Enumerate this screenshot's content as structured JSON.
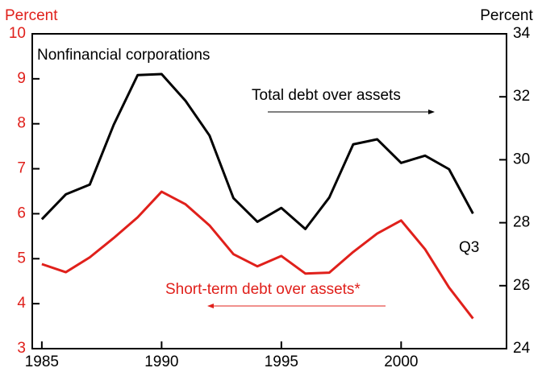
{
  "chart_data": {
    "type": "line",
    "y_label": "Percent",
    "y2_label": "Percent",
    "annotations": [
      "Nonfinancial corporations",
      "Total debt over assets",
      "Short-term debt over assets*",
      "Q3"
    ],
    "x": [
      1985,
      1986,
      1987,
      1988,
      1989,
      1990,
      1991,
      1992,
      1993,
      1994,
      1995,
      1996,
      1997,
      1998,
      1999,
      2000,
      2001,
      2002,
      2003
    ],
    "series": [
      {
        "name": "Short-term debt over assets*",
        "color": "#e0201b",
        "axis": "y",
        "values": [
          4.88,
          4.7,
          5.03,
          5.46,
          5.92,
          6.49,
          6.21,
          5.74,
          5.1,
          4.83,
          5.06,
          4.67,
          4.69,
          5.15,
          5.56,
          5.85,
          5.21,
          4.36,
          3.67
        ]
      },
      {
        "name": "Total debt over assets",
        "color": "#000000",
        "axis": "y2",
        "values": [
          28.11,
          28.9,
          29.21,
          31.11,
          32.69,
          32.72,
          31.87,
          30.77,
          28.78,
          28.03,
          28.47,
          27.8,
          28.8,
          30.49,
          30.65,
          29.9,
          30.13,
          29.7,
          28.29
        ]
      }
    ],
    "xlim": [
      1984.6,
      2004.4
    ],
    "xticks": [
      1985,
      1990,
      1995,
      2000
    ],
    "ylim": [
      3,
      10
    ],
    "yticks": [
      3,
      4,
      5,
      6,
      7,
      8,
      9,
      10
    ],
    "y2lim": [
      24,
      34
    ],
    "y2ticks": [
      24,
      26,
      28,
      30,
      32,
      34
    ]
  }
}
